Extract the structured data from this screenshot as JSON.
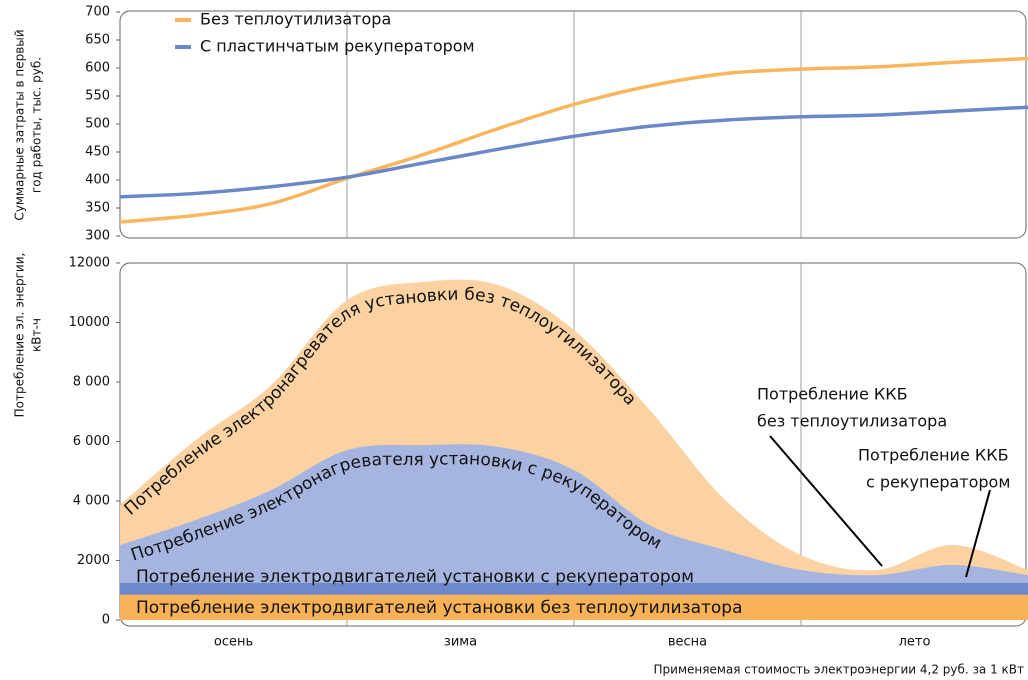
{
  "chart_data": [
    {
      "type": "line",
      "ylabel": [
        "Суммарные затраты в первый",
        "год работы, тыс. руб."
      ],
      "legend": "top-left",
      "x": [
        0,
        1,
        2,
        3,
        4,
        5,
        6,
        7,
        8,
        9,
        10,
        11,
        12
      ],
      "xlim": [
        0,
        12
      ],
      "ylim": [
        300,
        700
      ],
      "yticks": [
        300,
        350,
        400,
        450,
        500,
        550,
        600,
        650,
        700
      ],
      "grid": true,
      "series": [
        {
          "name": "Без теплоутилизатора",
          "color": "#f9b65c",
          "values": [
            325,
            337,
            358,
            403,
            445,
            492,
            535,
            568,
            590,
            598,
            602,
            610,
            617
          ]
        },
        {
          "name": "С пластинчатым рекуператором",
          "color": "#6a87c6",
          "values": [
            370,
            376,
            388,
            405,
            430,
            455,
            478,
            496,
            507,
            513,
            516,
            523,
            530
          ]
        }
      ]
    },
    {
      "type": "area",
      "ylabel": [
        "Потребление эл. энергии,",
        "кВт-ч"
      ],
      "categories": [
        "осень",
        "зима",
        "весна",
        "лето"
      ],
      "x": [
        0,
        1,
        2,
        3,
        4,
        5,
        6,
        7,
        8,
        9,
        10,
        11,
        12
      ],
      "xlim": [
        0,
        12
      ],
      "ylim": [
        0,
        12000
      ],
      "yticks": [
        0,
        2000,
        {
          "value": 4000,
          "label": "4 000"
        },
        {
          "value": 6000,
          "label": "6 000"
        },
        {
          "value": 8000,
          "label": "8 000"
        },
        10000,
        12000
      ],
      "grid": true,
      "series": [
        {
          "name": "Потребление электронагревателя установки без теплоутилизатора",
          "color": "#fcd2a2",
          "values": [
            3870,
            6050,
            7900,
            10750,
            11360,
            11260,
            9750,
            7060,
            4030,
            2180,
            1680,
            2520,
            1680
          ]
        },
        {
          "name": "Потребление электронагревателя установки с рекуператором",
          "color": "#a6b5df",
          "values": [
            2520,
            3360,
            4370,
            5710,
            5880,
            5820,
            5040,
            3190,
            2350,
            1680,
            1510,
            1850,
            1510
          ]
        },
        {
          "name": "Потребление электродвигателей установки с рекуператором",
          "color": "#6f88c9",
          "values": [
            1250,
            1250,
            1250,
            1250,
            1250,
            1250,
            1250,
            1250,
            1250,
            1250,
            1250,
            1250,
            1250
          ]
        },
        {
          "name": "Потребление электродвигателей установки без теплоутилизатора",
          "color": "#f7b257",
          "values": [
            850,
            850,
            850,
            850,
            850,
            850,
            850,
            850,
            850,
            850,
            850,
            850,
            850
          ]
        }
      ],
      "annotations": [
        {
          "lines": [
            "Потребление ККБ",
            "без теплоутилизатора"
          ]
        },
        {
          "lines": [
            "Потребление ККБ",
            "с рекуператором"
          ]
        }
      ]
    }
  ],
  "note": "Применяемая стоимость электроэнергии 4,2 руб. за 1 кВт"
}
